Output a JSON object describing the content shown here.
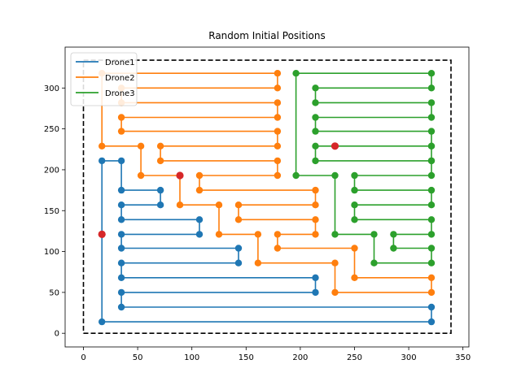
{
  "chart_data": {
    "type": "line",
    "title": "Random Initial Positions",
    "xlabel": "",
    "ylabel": "",
    "xlim": [
      -16.9,
      355.5
    ],
    "ylim": [
      -16.7,
      350.0
    ],
    "xticks": [
      0,
      50,
      100,
      150,
      200,
      250,
      300,
      350
    ],
    "yticks": [
      0,
      50,
      100,
      150,
      200,
      250,
      300
    ],
    "grid": false,
    "legend_placement": "upper-left",
    "boundary": {
      "style": "dashed",
      "color": "#000000",
      "x": [
        0,
        339,
        339,
        0,
        0
      ],
      "y": [
        0,
        0,
        334,
        334,
        0
      ]
    },
    "series": [
      {
        "name": "Drone1",
        "color": "#1f77b4",
        "points": [
          [
            17,
            121
          ],
          [
            17,
            14
          ],
          [
            321,
            14
          ],
          [
            321,
            32
          ],
          [
            35,
            32
          ],
          [
            35,
            50
          ],
          [
            214,
            50
          ],
          [
            214,
            68
          ],
          [
            35,
            68
          ],
          [
            35,
            86
          ],
          [
            143,
            86
          ],
          [
            143,
            104
          ],
          [
            35,
            104
          ],
          [
            35,
            121
          ],
          [
            107,
            121
          ],
          [
            107,
            139
          ],
          [
            35,
            139
          ],
          [
            35,
            157
          ],
          [
            71,
            157
          ],
          [
            71,
            175
          ],
          [
            35,
            175
          ],
          [
            35,
            211
          ],
          [
            17,
            211
          ],
          [
            17,
            121
          ]
        ]
      },
      {
        "name": "Drone2",
        "color": "#ff7f0e",
        "points": [
          [
            89,
            193
          ],
          [
            89,
            157
          ],
          [
            125,
            157
          ],
          [
            125,
            121
          ],
          [
            161,
            121
          ],
          [
            161,
            86
          ],
          [
            232,
            86
          ],
          [
            232,
            50
          ],
          [
            321,
            50
          ],
          [
            321,
            68
          ],
          [
            250,
            68
          ],
          [
            250,
            104
          ],
          [
            179,
            104
          ],
          [
            179,
            121
          ],
          [
            214,
            121
          ],
          [
            214,
            139
          ],
          [
            143,
            139
          ],
          [
            143,
            157
          ],
          [
            214,
            157
          ],
          [
            214,
            175
          ],
          [
            107,
            175
          ],
          [
            107,
            193
          ],
          [
            179,
            193
          ],
          [
            179,
            211
          ],
          [
            71,
            211
          ],
          [
            71,
            229
          ],
          [
            179,
            229
          ],
          [
            179,
            247
          ],
          [
            35,
            247
          ],
          [
            35,
            264
          ],
          [
            179,
            264
          ],
          [
            179,
            282
          ],
          [
            35,
            282
          ],
          [
            35,
            300
          ],
          [
            179,
            300
          ],
          [
            179,
            318
          ],
          [
            17,
            318
          ],
          [
            17,
            229
          ],
          [
            53,
            229
          ],
          [
            53,
            193
          ],
          [
            89,
            193
          ]
        ]
      },
      {
        "name": "Drone3",
        "color": "#2ca02c",
        "points": [
          [
            232,
            229
          ],
          [
            214,
            229
          ],
          [
            214,
            211
          ],
          [
            321,
            211
          ],
          [
            321,
            229
          ],
          [
            232,
            229
          ],
          [
            232,
            229
          ],
          [
            321,
            229
          ],
          [
            321,
            247
          ],
          [
            214,
            247
          ],
          [
            214,
            264
          ],
          [
            321,
            264
          ],
          [
            321,
            282
          ],
          [
            214,
            282
          ],
          [
            214,
            300
          ],
          [
            321,
            300
          ],
          [
            321,
            318
          ],
          [
            196,
            318
          ],
          [
            196,
            193
          ],
          [
            232,
            193
          ],
          [
            232,
            121
          ],
          [
            268,
            121
          ],
          [
            268,
            86
          ],
          [
            321,
            86
          ],
          [
            321,
            104
          ],
          [
            286,
            104
          ],
          [
            286,
            121
          ],
          [
            321,
            121
          ],
          [
            321,
            139
          ],
          [
            250,
            139
          ],
          [
            250,
            157
          ],
          [
            321,
            157
          ],
          [
            321,
            175
          ],
          [
            250,
            175
          ],
          [
            250,
            193
          ],
          [
            321,
            193
          ],
          [
            321,
            211
          ]
        ]
      }
    ],
    "start_points": {
      "color": "#d62728",
      "points": [
        [
          17,
          121
        ],
        [
          89,
          193
        ],
        [
          232,
          229
        ]
      ]
    }
  }
}
